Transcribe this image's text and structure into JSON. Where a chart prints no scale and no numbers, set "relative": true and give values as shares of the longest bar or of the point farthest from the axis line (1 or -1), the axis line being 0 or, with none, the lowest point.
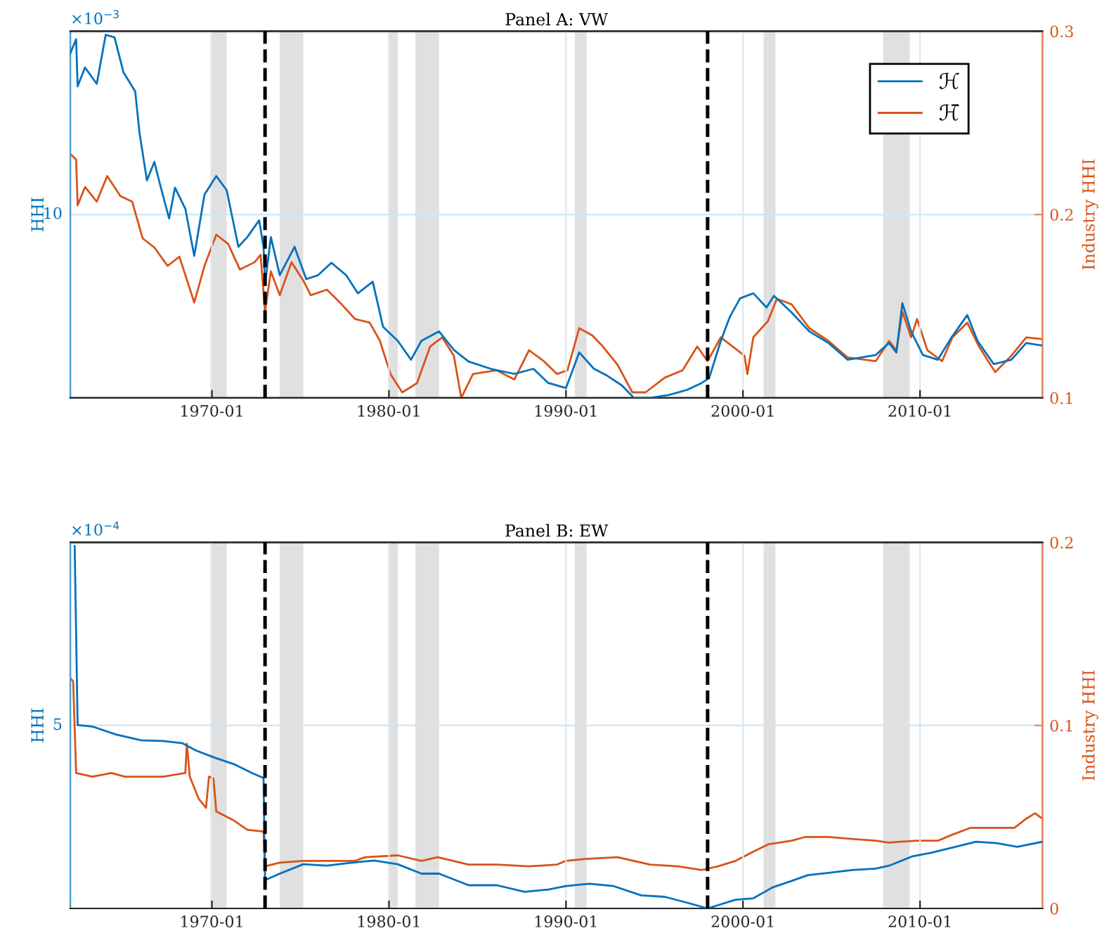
{
  "chart_data": [
    {
      "type": "line",
      "title": "Panel A: VW",
      "ylabel": "HHI",
      "y2label": "Industry HHI",
      "annotations": [
        "×10$^{−3}$",
        "10"
      ],
      "relative": true,
      "xlim": [
        "1962-01",
        "2016-12"
      ],
      "xticks": [
        "1970-01",
        "1980-01",
        "1990-01",
        "2000-01",
        "2010-01"
      ],
      "y2lim": [
        0.1,
        0.3
      ],
      "y2ticks": [
        0.1,
        0.2,
        0.3
      ],
      "grid": true,
      "legend": "top right",
      "ref_lines": [
        {
          "axis": "x",
          "value": "1973-01",
          "color": "#000000",
          "line_style": "dashed"
        },
        {
          "axis": "x",
          "value": "1998-01",
          "color": "#000000",
          "line_style": "dashed"
        }
      ],
      "bands": [
        {
          "axis": "x",
          "from": "1969-12",
          "to": "1970-11",
          "color": "#e0e0e0"
        },
        {
          "axis": "x",
          "from": "1973-11",
          "to": "1975-03",
          "color": "#e0e0e0"
        },
        {
          "axis": "x",
          "from": "1980-01",
          "to": "1980-07",
          "color": "#e0e0e0"
        },
        {
          "axis": "x",
          "from": "1981-07",
          "to": "1982-11",
          "color": "#e0e0e0"
        },
        {
          "axis": "x",
          "from": "1990-07",
          "to": "1991-03",
          "color": "#e0e0e0"
        },
        {
          "axis": "x",
          "from": "2001-03",
          "to": "2001-11",
          "color": "#e0e0e0"
        },
        {
          "axis": "x",
          "from": "2007-12",
          "to": "2009-06",
          "color": "#e0e0e0"
        }
      ],
      "series": [
        {
          "name": "ℋ",
          "color": "#0072bd",
          "x": [
            "1962-01",
            "1962-05",
            "1962-06",
            "1962-11",
            "1963-07",
            "1964-01",
            "1964-07",
            "1965-01",
            "1965-09",
            "1965-12",
            "1966-05",
            "1966-10",
            "1967-02",
            "1967-08",
            "1967-12",
            "1968-07",
            "1969-01",
            "1969-08",
            "1970-04",
            "1970-11",
            "1971-07",
            "1972-01",
            "1972-09",
            "1972-12",
            "1973-01",
            "1973-05",
            "1973-11",
            "1974-09",
            "1975-05",
            "1976-01",
            "1976-10",
            "1977-08",
            "1978-04",
            "1979-02",
            "1979-09",
            "1980-07",
            "1981-04",
            "1981-11",
            "1982-11",
            "1983-09",
            "1984-07",
            "1985-10",
            "1987-02",
            "1988-03",
            "1989-01",
            "1990-01",
            "1990-10",
            "1991-08",
            "1992-05",
            "1993-03",
            "1993-11",
            "1994-10",
            "1995-11",
            "1996-11",
            "1997-09",
            "1998-02",
            "1998-10",
            "1999-04",
            "1999-11",
            "2000-08",
            "2001-05",
            "2001-10",
            "2002-10",
            "2003-10",
            "2004-11",
            "2005-12",
            "2007-07",
            "2008-04",
            "2008-09",
            "2009-01",
            "2009-07",
            "2010-03",
            "2011-01",
            "2011-10",
            "2012-09",
            "2013-04",
            "2014-03",
            "2015-03",
            "2016-01",
            "2016-12"
          ],
          "values": [
            0.949,
            0.988,
            0.858,
            0.91,
            0.865,
            1.0,
            0.993,
            0.897,
            0.844,
            0.728,
            0.599,
            0.65,
            0.585,
            0.494,
            0.579,
            0.521,
            0.391,
            0.56,
            0.611,
            0.572,
            0.416,
            0.443,
            0.489,
            0.416,
            0.313,
            0.443,
            0.338,
            0.416,
            0.327,
            0.338,
            0.372,
            0.338,
            0.288,
            0.32,
            0.196,
            0.157,
            0.105,
            0.157,
            0.183,
            0.132,
            0.1,
            0.08,
            0.066,
            0.08,
            0.041,
            0.027,
            0.125,
            0.08,
            0.061,
            0.034,
            0.0,
            0.0,
            0.008,
            0.022,
            0.041,
            0.054,
            0.157,
            0.222,
            0.274,
            0.288,
            0.249,
            0.281,
            0.235,
            0.183,
            0.151,
            0.105,
            0.118,
            0.151,
            0.125,
            0.261,
            0.183,
            0.118,
            0.105,
            0.164,
            0.228,
            0.157,
            0.093,
            0.105,
            0.151,
            0.144
          ]
        },
        {
          "name": "ℋ̄",
          "color": "#d95319",
          "axis": "y2",
          "x": [
            "1962-01",
            "1962-05",
            "1962-06",
            "1962-11",
            "1963-07",
            "1964-02",
            "1964-11",
            "1965-07",
            "1966-02",
            "1966-10",
            "1967-07",
            "1968-03",
            "1969-01",
            "1969-08",
            "1970-04",
            "1970-12",
            "1971-08",
            "1972-06",
            "1972-10",
            "1973-01",
            "1973-05",
            "1973-11",
            "1974-07",
            "1975-03",
            "1975-08",
            "1976-07",
            "1977-05",
            "1978-02",
            "1978-12",
            "1979-07",
            "1980-02",
            "1980-10",
            "1981-08",
            "1982-05",
            "1983-01",
            "1983-09",
            "1984-02",
            "1984-10",
            "1986-02",
            "1987-02",
            "1987-12",
            "1988-10",
            "1989-07",
            "1990-02",
            "1990-10",
            "1991-07",
            "1992-02",
            "1992-12",
            "1993-10",
            "1994-07",
            "1995-08",
            "1996-08",
            "1997-06",
            "1998-01",
            "1998-10",
            "1999-06",
            "2000-02",
            "2000-04",
            "2000-08",
            "2001-06",
            "2001-12",
            "2002-10",
            "2003-10",
            "2004-11",
            "2005-12",
            "2007-07",
            "2008-04",
            "2008-09",
            "2009-01",
            "2009-07",
            "2009-11",
            "2010-06",
            "2011-04",
            "2011-11",
            "2012-09",
            "2013-05",
            "2014-04",
            "2015-03",
            "2016-01",
            "2016-12"
          ],
          "values": [
            0.233,
            0.23,
            0.205,
            0.215,
            0.207,
            0.221,
            0.21,
            0.207,
            0.187,
            0.182,
            0.172,
            0.177,
            0.152,
            0.172,
            0.189,
            0.184,
            0.17,
            0.174,
            0.178,
            0.147,
            0.169,
            0.156,
            0.174,
            0.164,
            0.156,
            0.159,
            0.151,
            0.143,
            0.141,
            0.131,
            0.113,
            0.103,
            0.108,
            0.128,
            0.133,
            0.123,
            0.1,
            0.113,
            0.115,
            0.11,
            0.126,
            0.12,
            0.113,
            0.115,
            0.138,
            0.134,
            0.128,
            0.118,
            0.103,
            0.103,
            0.111,
            0.115,
            0.128,
            0.12,
            0.133,
            0.128,
            0.123,
            0.113,
            0.133,
            0.142,
            0.154,
            0.151,
            0.138,
            0.131,
            0.122,
            0.12,
            0.131,
            0.126,
            0.147,
            0.133,
            0.143,
            0.126,
            0.12,
            0.133,
            0.141,
            0.128,
            0.114,
            0.123,
            0.133,
            0.132
          ]
        }
      ]
    },
    {
      "type": "line",
      "title": "Panel B: EW",
      "ylabel": "HHI",
      "y2label": "Industry HHI",
      "annotations": [
        "×10$^{−4}$",
        "5"
      ],
      "relative": true,
      "xlim": [
        "1962-01",
        "2016-12"
      ],
      "xticks": [
        "1970-01",
        "1980-01",
        "1990-01",
        "2000-01",
        "2010-01"
      ],
      "y2lim": [
        0,
        0.2
      ],
      "y2ticks": [
        0,
        0.1,
        0.2
      ],
      "grid": true,
      "ref_lines": [
        {
          "axis": "x",
          "value": "1973-01",
          "color": "#000000",
          "line_style": "dashed"
        },
        {
          "axis": "x",
          "value": "1998-01",
          "color": "#000000",
          "line_style": "dashed"
        }
      ],
      "bands": [
        {
          "axis": "x",
          "from": "1969-12",
          "to": "1970-11",
          "color": "#e0e0e0"
        },
        {
          "axis": "x",
          "from": "1973-11",
          "to": "1975-03",
          "color": "#e0e0e0"
        },
        {
          "axis": "x",
          "from": "1980-01",
          "to": "1980-07",
          "color": "#e0e0e0"
        },
        {
          "axis": "x",
          "from": "1981-07",
          "to": "1982-11",
          "color": "#e0e0e0"
        },
        {
          "axis": "x",
          "from": "1990-07",
          "to": "1991-03",
          "color": "#e0e0e0"
        },
        {
          "axis": "x",
          "from": "2001-03",
          "to": "2001-11",
          "color": "#e0e0e0"
        },
        {
          "axis": "x",
          "from": "2007-12",
          "to": "2009-06",
          "color": "#e0e0e0"
        }
      ],
      "series": [
        {
          "color": "#0072bd",
          "x": [
            "1962-04",
            "1962-06",
            "1963-04",
            "1964-08",
            "1966-01",
            "1967-04",
            "1968-05",
            "1969-02",
            "1970-03",
            "1971-04",
            "1972-04",
            "1972-12",
            "1973-01",
            "1973-11",
            "1975-03",
            "1976-07",
            "1977-11",
            "1979-03",
            "1980-07",
            "1981-11",
            "1982-11",
            "1984-07",
            "1986-02",
            "1987-09",
            "1989-01",
            "1990-01",
            "1991-05",
            "1992-09",
            "1994-04",
            "1995-08",
            "1996-11",
            "1998-01",
            "1999-08",
            "2000-08",
            "2001-09",
            "2002-10",
            "2003-09",
            "2004-11",
            "2006-03",
            "2007-07",
            "2008-04",
            "2009-08",
            "2010-09",
            "2012-01",
            "2013-03",
            "2014-05",
            "2015-07",
            "2016-12"
          ],
          "values": [
            1.0,
            0.506,
            0.502,
            0.48,
            0.464,
            0.462,
            0.456,
            0.436,
            0.416,
            0.398,
            0.374,
            0.36,
            0.078,
            0.096,
            0.122,
            0.118,
            0.126,
            0.132,
            0.122,
            0.096,
            0.096,
            0.064,
            0.064,
            0.046,
            0.052,
            0.062,
            0.068,
            0.062,
            0.036,
            0.032,
            0.016,
            0.0,
            0.024,
            0.028,
            0.058,
            0.076,
            0.092,
            0.098,
            0.106,
            0.11,
            0.118,
            0.144,
            0.154,
            0.17,
            0.184,
            0.18,
            0.17,
            0.184
          ]
        },
        {
          "color": "#d95319",
          "axis": "y2",
          "x": [
            "1962-01",
            "1962-03",
            "1962-05",
            "1963-04",
            "1964-05",
            "1965-02",
            "1965-12",
            "1967-04",
            "1968-07",
            "1968-08",
            "1968-10",
            "1969-04",
            "1969-09",
            "1969-11",
            "1970-02",
            "1970-04",
            "1971-04",
            "1972-01",
            "1972-12",
            "1973-01",
            "1973-11",
            "1975-03",
            "1976-07",
            "1978-02",
            "1978-09",
            "1980-07",
            "1981-11",
            "1982-10",
            "1984-07",
            "1986-02",
            "1987-12",
            "1989-07",
            "1990-01",
            "1991-02",
            "1992-12",
            "1994-10",
            "1996-05",
            "1997-09",
            "1998-08",
            "1999-08",
            "2000-08",
            "2001-06",
            "2002-10",
            "2003-07",
            "2004-11",
            "2006-03",
            "2007-07",
            "2008-04",
            "2009-11",
            "2011-01",
            "2011-10",
            "2012-11",
            "2014-03",
            "2015-05",
            "2016-01",
            "2016-07",
            "2016-12"
          ],
          "values": [
            0.126,
            0.124,
            0.074,
            0.072,
            0.074,
            0.072,
            0.072,
            0.072,
            0.074,
            0.09,
            0.072,
            0.06,
            0.055,
            0.072,
            0.071,
            0.053,
            0.048,
            0.043,
            0.042,
            0.023,
            0.025,
            0.026,
            0.026,
            0.026,
            0.028,
            0.029,
            0.026,
            0.028,
            0.024,
            0.024,
            0.023,
            0.024,
            0.026,
            0.027,
            0.028,
            0.024,
            0.023,
            0.021,
            0.023,
            0.026,
            0.031,
            0.035,
            0.037,
            0.039,
            0.039,
            0.038,
            0.037,
            0.036,
            0.037,
            0.037,
            0.04,
            0.044,
            0.044,
            0.044,
            0.049,
            0.052,
            0.049
          ]
        }
      ]
    }
  ]
}
